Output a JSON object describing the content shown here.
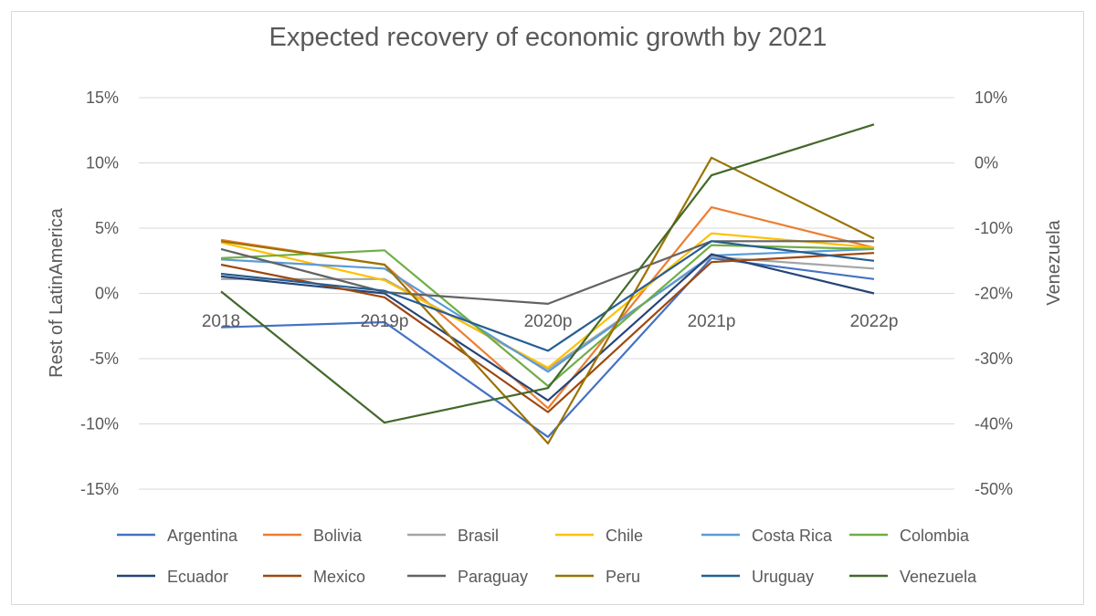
{
  "chart_data": {
    "type": "line",
    "title": "Expected recovery of economic growth by 2021",
    "categories": [
      "2018",
      "2019p",
      "2020p",
      "2021p",
      "2022p"
    ],
    "y_left": {
      "label": "Rest of LatinAmerica",
      "range": [
        -15,
        15
      ],
      "ticks": [
        "-15%",
        "-10%",
        "-5%",
        "0%",
        "5%",
        "10%",
        "15%"
      ]
    },
    "y_right": {
      "label": "Venezuela",
      "range": [
        -50,
        10
      ],
      "ticks": [
        "-50%",
        "-40%",
        "-30%",
        "-20%",
        "-10%",
        "0%",
        "10%"
      ]
    },
    "grid": true,
    "legend_position": "bottom",
    "series": [
      {
        "name": "Argentina",
        "color": "#4472C4",
        "axis": "left",
        "values": [
          -2.6,
          -2.2,
          -11.0,
          2.7,
          1.1
        ]
      },
      {
        "name": "Bolivia",
        "color": "#ED7D31",
        "axis": "left",
        "values": [
          4.1,
          2.2,
          -8.8,
          6.6,
          3.5
        ]
      },
      {
        "name": "Brasil",
        "color": "#A5A5A5",
        "axis": "left",
        "values": [
          1.1,
          1.1,
          -5.8,
          2.8,
          1.9
        ]
      },
      {
        "name": "Chile",
        "color": "#FFC000",
        "axis": "left",
        "values": [
          3.9,
          1.0,
          -5.7,
          4.6,
          3.5
        ]
      },
      {
        "name": "Costa Rica",
        "color": "#5B9BD5",
        "axis": "left",
        "values": [
          2.6,
          1.9,
          -6.0,
          2.9,
          3.4
        ]
      },
      {
        "name": "Colombia",
        "color": "#70AD47",
        "axis": "left",
        "values": [
          2.7,
          3.3,
          -7.1,
          3.7,
          3.4
        ]
      },
      {
        "name": "Ecuador",
        "color": "#264478",
        "axis": "left",
        "values": [
          1.3,
          0.0,
          -8.2,
          3.0,
          0.0
        ]
      },
      {
        "name": "Mexico",
        "color": "#9E480E",
        "axis": "left",
        "values": [
          2.2,
          -0.3,
          -9.1,
          2.4,
          3.1
        ]
      },
      {
        "name": "Paraguay",
        "color": "#636363",
        "axis": "left",
        "values": [
          3.4,
          0.1,
          -0.8,
          4.0,
          4.0
        ]
      },
      {
        "name": "Peru",
        "color": "#997300",
        "axis": "left",
        "values": [
          4.0,
          2.2,
          -11.5,
          10.4,
          4.2
        ]
      },
      {
        "name": "Uruguay",
        "color": "#255E91",
        "axis": "left",
        "values": [
          1.5,
          0.2,
          -4.4,
          4.0,
          2.5
        ]
      },
      {
        "name": "Venezuela",
        "color": "#43682B",
        "axis": "right",
        "values": [
          -19.7,
          -39.8,
          -34.5,
          -1.9,
          5.9
        ]
      }
    ]
  }
}
